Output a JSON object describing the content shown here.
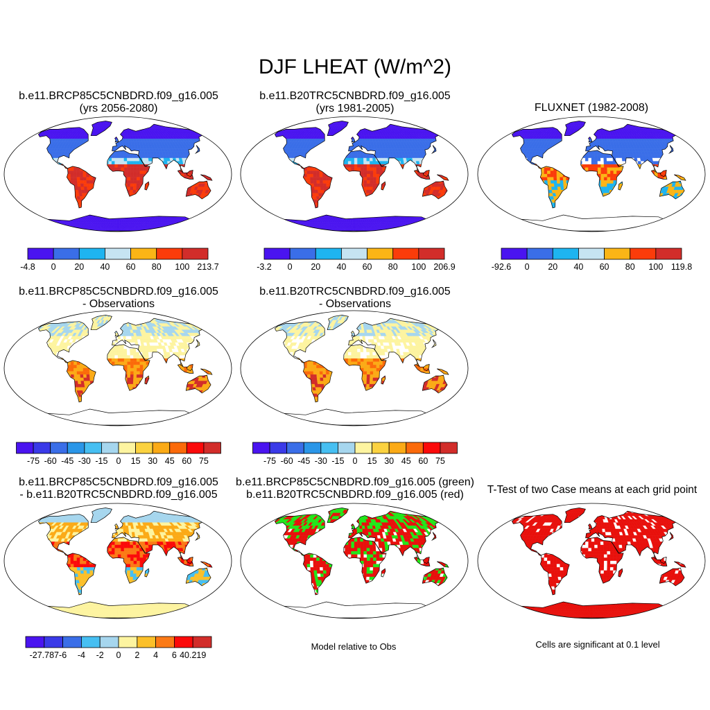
{
  "figure": {
    "title": "DJF LHEAT (W/m^2)"
  },
  "panels": [
    {
      "title1": "b.e11.BRCP85C5CNBDRD.f09_g16.005",
      "title2": "(yrs 2056-2080)",
      "colorbar": {
        "labels": [
          "-4.8",
          "0",
          "20",
          "40",
          "60",
          "80",
          "100",
          "213.7"
        ],
        "colors": [
          "#4a14f0",
          "#3a6ee8",
          "#1eb4f0",
          "#c6e4f2",
          "#fbb516",
          "#fb3c0a",
          "#d22d2a"
        ]
      }
    },
    {
      "title1": "b.e11.B20TRC5CNBDRD.f09_g16.005",
      "title2": "(yrs 1981-2005)",
      "colorbar": {
        "labels": [
          "-3.2",
          "0",
          "20",
          "40",
          "60",
          "80",
          "100",
          "206.9"
        ],
        "colors": [
          "#4a14f0",
          "#3a6ee8",
          "#1eb4f0",
          "#c6e4f2",
          "#fbb516",
          "#fb3c0a",
          "#d22d2a"
        ]
      }
    },
    {
      "title1": "FLUXNET (1982-2008)",
      "title2": "",
      "colorbar": {
        "labels": [
          "-92.6",
          "0",
          "20",
          "40",
          "60",
          "80",
          "100",
          "119.8"
        ],
        "colors": [
          "#4a14f0",
          "#3a6ee8",
          "#1eb4f0",
          "#c6e4f2",
          "#fbb516",
          "#fb3c0a",
          "#d22d2a"
        ]
      }
    },
    {
      "title1": "b.e11.BRCP85C5CNBDRD.f09_g16.005",
      "title2": "- Observations",
      "colorbar": {
        "labels": [
          "-75",
          "-60",
          "-45",
          "-30",
          "-15",
          "0",
          "15",
          "30",
          "45",
          "60",
          "75"
        ],
        "colors": [
          "#4a14f0",
          "#3a3ae8",
          "#3a6ee8",
          "#2a96e8",
          "#46bff2",
          "#a6d6ee",
          "#fdf4a0",
          "#fbd240",
          "#fbaa16",
          "#fb6a0a",
          "#fb0a0a",
          "#d22d2a"
        ]
      }
    },
    {
      "title1": "b.e11.B20TRC5CNBDRD.f09_g16.005",
      "title2": "- Observations",
      "colorbar": {
        "labels": [
          "-75",
          "-60",
          "-45",
          "-30",
          "-15",
          "0",
          "15",
          "30",
          "45",
          "60",
          "75"
        ],
        "colors": [
          "#4a14f0",
          "#3a3ae8",
          "#3a6ee8",
          "#2a96e8",
          "#46bff2",
          "#a6d6ee",
          "#fdf4a0",
          "#fbd240",
          "#fbaa16",
          "#fb6a0a",
          "#fb0a0a",
          "#d22d2a"
        ]
      }
    },
    {
      "title1": "b.e11.BRCP85C5CNBDRD.f09_g16.005",
      "title2": "- b.e11.B20TRC5CNBDRD.f09_g16.005",
      "colorbar": {
        "labels": [
          "-27.787",
          "-6",
          "-4",
          "-2",
          "0",
          "2",
          "4",
          "6",
          "40.219"
        ],
        "colors": [
          "#4a14f0",
          "#3a3ae8",
          "#3a6ee8",
          "#46bff2",
          "#a6d6ee",
          "#fdf4a0",
          "#fbc02a",
          "#fb7a16",
          "#fb0a0a",
          "#d22d2a"
        ]
      }
    },
    {
      "title1": "b.e11.BRCP85C5CNBDRD.f09_g16.005 (green)",
      "title2": "b.e11.B20TRC5CNBDRD.f09_g16.005 (red)",
      "note": "Model relative to Obs"
    },
    {
      "title1": "T-Test of two Case means at each grid point",
      "title2": "",
      "note": "Cells are significant at 0.1 level"
    }
  ]
}
